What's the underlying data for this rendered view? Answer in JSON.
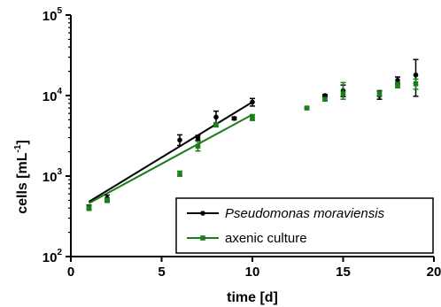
{
  "chart_data": {
    "type": "scatter",
    "xlabel": "time [d]",
    "ylabel_main": "cells [mL",
    "ylabel_sup": "-1",
    "ylabel_close": "]",
    "y_scale": "log",
    "xlim": [
      0,
      20
    ],
    "ylim": [
      100,
      100000
    ],
    "x_ticks": [
      {
        "value": 0,
        "label": "0"
      },
      {
        "value": 5,
        "label": "5"
      },
      {
        "value": 10,
        "label": "10"
      },
      {
        "value": 15,
        "label": "15"
      },
      {
        "value": 20,
        "label": "20"
      }
    ],
    "y_ticks": [
      {
        "value": 100,
        "base": "10",
        "exp": "2"
      },
      {
        "value": 1000,
        "base": "10",
        "exp": "3"
      },
      {
        "value": 10000,
        "base": "10",
        "exp": "4"
      },
      {
        "value": 100000,
        "base": "10",
        "exp": "5"
      }
    ],
    "grid": false,
    "legend_position": "bottom-right",
    "series": [
      {
        "name": "Pseudomonas moraviensis",
        "color": "#000000",
        "marker": "circle",
        "points": [
          {
            "x": 1,
            "y": 410,
            "lo": 385,
            "hi": 435
          },
          {
            "x": 2,
            "y": 530,
            "lo": 490,
            "hi": 580
          },
          {
            "x": 6,
            "y": 2800,
            "lo": 2400,
            "hi": 3250
          },
          {
            "x": 7,
            "y": 3000,
            "lo": 2800,
            "hi": 3200
          },
          {
            "x": 8,
            "y": 5400,
            "lo": 4600,
            "hi": 6400
          },
          {
            "x": 9,
            "y": 5200,
            "lo": 5000,
            "hi": 5400
          },
          {
            "x": 10,
            "y": 8300,
            "lo": 7400,
            "hi": 9200
          },
          {
            "x": 14,
            "y": 10000,
            "lo": 9700,
            "hi": 10300
          },
          {
            "x": 15,
            "y": 11500,
            "lo": 9700,
            "hi": 13500
          },
          {
            "x": 17,
            "y": 10000,
            "lo": 9000,
            "hi": 11500
          },
          {
            "x": 18,
            "y": 15500,
            "lo": 14000,
            "hi": 17000
          },
          {
            "x": 19,
            "y": 18000,
            "lo": 9800,
            "hi": 28000
          }
        ],
        "fit": {
          "x": [
            1,
            10
          ],
          "y": [
            480,
            8300
          ]
        }
      },
      {
        "name": "axenic culture",
        "color": "#1a7f1a",
        "marker": "square",
        "points": [
          {
            "x": 1,
            "y": 400,
            "lo": 375,
            "hi": 425
          },
          {
            "x": 2,
            "y": 500,
            "lo": 470,
            "hi": 530
          },
          {
            "x": 6,
            "y": 1050,
            "lo": 1000,
            "hi": 1150
          },
          {
            "x": 7,
            "y": 2350,
            "lo": 2050,
            "hi": 2700
          },
          {
            "x": 8,
            "y": 4300,
            "lo": 4100,
            "hi": 4600
          },
          {
            "x": 10,
            "y": 5300,
            "lo": 4900,
            "hi": 5800
          },
          {
            "x": 13,
            "y": 7000,
            "lo": 6800,
            "hi": 7200
          },
          {
            "x": 14,
            "y": 9000,
            "lo": 8600,
            "hi": 9400
          },
          {
            "x": 15,
            "y": 10500,
            "lo": 9000,
            "hi": 14500
          },
          {
            "x": 17,
            "y": 10500,
            "lo": 9800,
            "hi": 11300
          },
          {
            "x": 18,
            "y": 13500,
            "lo": 12500,
            "hi": 14500
          },
          {
            "x": 19,
            "y": 14000,
            "lo": 12000,
            "hi": 16000
          }
        ],
        "fit": {
          "x": [
            1,
            10
          ],
          "y": [
            460,
            5800
          ]
        }
      }
    ]
  }
}
